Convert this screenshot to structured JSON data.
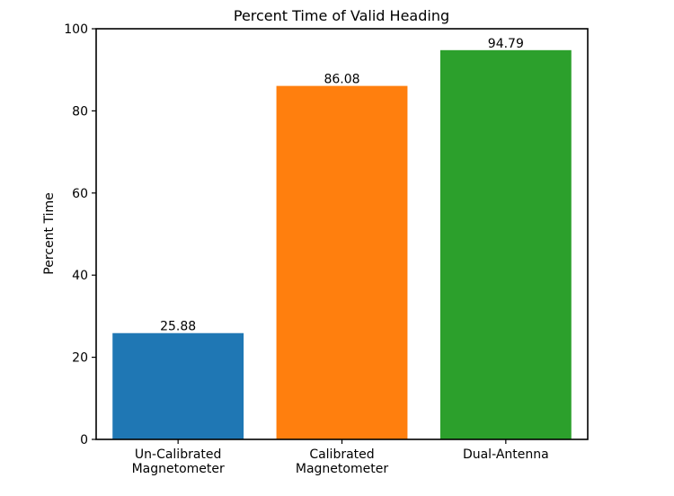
{
  "chart_data": {
    "type": "bar",
    "title": "Percent Time of Valid Heading",
    "ylabel": "Percent Time",
    "xlabel": "",
    "categories": [
      [
        "Un-Calibrated",
        "Magnetometer"
      ],
      [
        "Calibrated",
        "Magnetometer"
      ],
      [
        "Dual-Antenna"
      ]
    ],
    "values": [
      25.88,
      86.08,
      94.79
    ],
    "data_labels": [
      "25.88",
      "86.08",
      "94.79"
    ],
    "colors": [
      "#1f77b4",
      "#ff7f0e",
      "#2ca02c"
    ],
    "ylim": [
      0,
      100
    ],
    "yticks": [
      0,
      20,
      40,
      60,
      80,
      100
    ],
    "grid": false,
    "legend": "none"
  }
}
